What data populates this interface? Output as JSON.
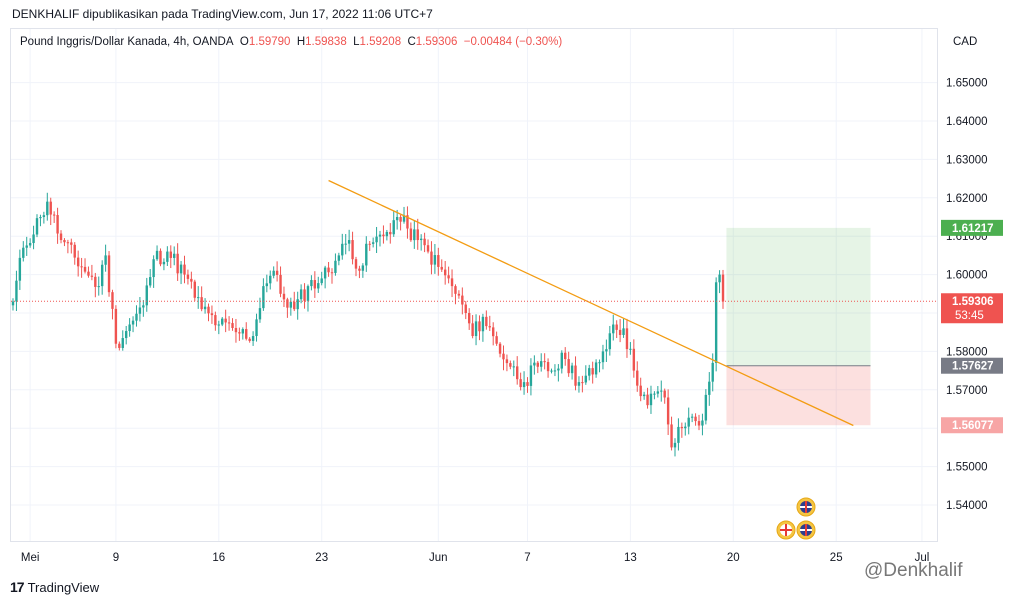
{
  "header": {
    "publish_line": "DENKHALIF dipublikasikan pada TradingView.com, Jun 17, 2022 11:06 UTC+7"
  },
  "legend": {
    "symbol": "Pound Inggris/Dollar Kanada, 4h, OANDA",
    "o_label": "O",
    "o_value": "1.59790",
    "h_label": "H",
    "h_value": "1.59838",
    "l_label": "L",
    "l_value": "1.59208",
    "c_label": "C",
    "c_value": "1.59306",
    "change": "−0.00484 (−0.30%)"
  },
  "currency": "CAD",
  "brand": {
    "name": "TradingView",
    "logo": "17"
  },
  "watermark": "@Denkhalif",
  "chart_data": {
    "type": "candlestick",
    "y_axis": {
      "min": 1.537,
      "max": 1.665,
      "ticks": [
        "1.54000",
        "1.55000",
        "1.56000",
        "1.57000",
        "1.58000",
        "1.59000",
        "1.60000",
        "1.61000",
        "1.62000",
        "1.63000",
        "1.64000",
        "1.65000"
      ]
    },
    "x_axis": {
      "labels": [
        {
          "text": "Mei",
          "bar": 5
        },
        {
          "text": "9",
          "bar": 30
        },
        {
          "text": "16",
          "bar": 60
        },
        {
          "text": "23",
          "bar": 90
        },
        {
          "text": "Jun",
          "bar": 124
        },
        {
          "text": "7",
          "bar": 150
        },
        {
          "text": "13",
          "bar": 180
        },
        {
          "text": "20",
          "bar": 210
        },
        {
          "text": "25",
          "bar": 240
        },
        {
          "text": "Jul",
          "bar": 265
        }
      ]
    },
    "colors": {
      "up": "#26a69a",
      "down": "#ef5350",
      "trendline": "#f39c12",
      "grid": "#f0f3fa"
    },
    "price_labels": {
      "current": {
        "value": 1.59306,
        "text": "1.59306",
        "countdown": "53:45",
        "color": "#ef5350"
      },
      "target": {
        "value": 1.61217,
        "text": "1.61217",
        "color": "#4caf50"
      },
      "entry": {
        "value": 1.57627,
        "text": "1.57627",
        "color": "#787b86"
      },
      "stop": {
        "value": 1.56077,
        "text": "1.56077",
        "color": "#f7a5a5"
      }
    },
    "position": {
      "type": "long",
      "start_bar": 208,
      "end_bar": 250,
      "entry": 1.57627,
      "target": 1.61217,
      "stop": 1.56077
    },
    "trendline": {
      "start": {
        "bar": 92,
        "price": 1.6245
      },
      "end": {
        "bar": 245,
        "price": 1.5607
      }
    },
    "anchors": [
      {
        "bar": 0,
        "price": 1.593
      },
      {
        "bar": 3,
        "price": 1.607
      },
      {
        "bar": 8,
        "price": 1.615
      },
      {
        "bar": 10,
        "price": 1.619
      },
      {
        "bar": 14,
        "price": 1.609
      },
      {
        "bar": 20,
        "price": 1.602
      },
      {
        "bar": 25,
        "price": 1.597
      },
      {
        "bar": 27,
        "price": 1.605
      },
      {
        "bar": 30,
        "price": 1.582
      },
      {
        "bar": 35,
        "price": 1.588
      },
      {
        "bar": 38,
        "price": 1.592
      },
      {
        "bar": 41,
        "price": 1.604
      },
      {
        "bar": 45,
        "price": 1.606
      },
      {
        "bar": 50,
        "price": 1.6
      },
      {
        "bar": 55,
        "price": 1.591
      },
      {
        "bar": 60,
        "price": 1.587
      },
      {
        "bar": 65,
        "price": 1.585
      },
      {
        "bar": 70,
        "price": 1.584
      },
      {
        "bar": 73,
        "price": 1.597
      },
      {
        "bar": 76,
        "price": 1.601
      },
      {
        "bar": 78,
        "price": 1.595
      },
      {
        "bar": 82,
        "price": 1.591
      },
      {
        "bar": 86,
        "price": 1.597
      },
      {
        "bar": 90,
        "price": 1.599
      },
      {
        "bar": 95,
        "price": 1.605
      },
      {
        "bar": 98,
        "price": 1.609
      },
      {
        "bar": 101,
        "price": 1.601
      },
      {
        "bar": 104,
        "price": 1.608
      },
      {
        "bar": 108,
        "price": 1.61
      },
      {
        "bar": 112,
        "price": 1.615
      },
      {
        "bar": 115,
        "price": 1.612
      },
      {
        "bar": 118,
        "price": 1.609
      },
      {
        "bar": 121,
        "price": 1.606
      },
      {
        "bar": 124,
        "price": 1.602
      },
      {
        "bar": 128,
        "price": 1.597
      },
      {
        "bar": 132,
        "price": 1.59
      },
      {
        "bar": 134,
        "price": 1.584
      },
      {
        "bar": 137,
        "price": 1.589
      },
      {
        "bar": 141,
        "price": 1.582
      },
      {
        "bar": 145,
        "price": 1.576
      },
      {
        "bar": 149,
        "price": 1.572
      },
      {
        "bar": 153,
        "price": 1.576
      },
      {
        "bar": 157,
        "price": 1.575
      },
      {
        "bar": 161,
        "price": 1.578
      },
      {
        "bar": 165,
        "price": 1.572
      },
      {
        "bar": 169,
        "price": 1.574
      },
      {
        "bar": 172,
        "price": 1.58
      },
      {
        "bar": 175,
        "price": 1.587
      },
      {
        "bar": 178,
        "price": 1.586
      },
      {
        "bar": 181,
        "price": 1.575
      },
      {
        "bar": 185,
        "price": 1.566
      },
      {
        "bar": 187,
        "price": 1.569
      },
      {
        "bar": 190,
        "price": 1.568
      },
      {
        "bar": 192,
        "price": 1.555
      },
      {
        "bar": 195,
        "price": 1.56
      },
      {
        "bar": 198,
        "price": 1.563
      },
      {
        "bar": 201,
        "price": 1.562
      },
      {
        "bar": 204,
        "price": 1.577
      },
      {
        "bar": 205,
        "price": 1.598
      },
      {
        "bar": 206,
        "price": 1.6
      },
      {
        "bar": 207,
        "price": 1.593
      }
    ]
  }
}
